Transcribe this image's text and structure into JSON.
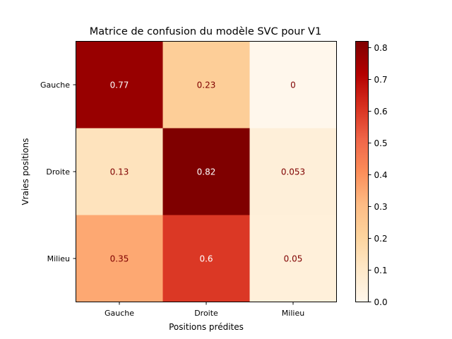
{
  "chart_data": {
    "type": "heatmap",
    "title": "Matrice de confusion du modèle SVC pour V1",
    "xlabel": "Positions prédites",
    "ylabel": "Vraies positions",
    "x_categories": [
      "Gauche",
      "Droite",
      "Milieu"
    ],
    "y_categories": [
      "Gauche",
      "Droite",
      "Milieu"
    ],
    "values": [
      [
        0.77,
        0.23,
        0
      ],
      [
        0.13,
        0.82,
        0.053
      ],
      [
        0.35,
        0.6,
        0.05
      ]
    ],
    "cell_labels": [
      [
        "0.77",
        "0.23",
        "0"
      ],
      [
        "0.13",
        "0.82",
        "0.053"
      ],
      [
        "0.35",
        "0.6",
        "0.05"
      ]
    ],
    "colormap": "OrRd",
    "color_range": [
      0,
      0.82
    ],
    "colorbar_ticks": [
      "0.0",
      "0.1",
      "0.2",
      "0.3",
      "0.4",
      "0.5",
      "0.6",
      "0.7",
      "0.8"
    ],
    "colorbar_tick_values": [
      0,
      0.1,
      0.2,
      0.3,
      0.4,
      0.5,
      0.6,
      0.7,
      0.8
    ],
    "text_colors": {
      "on_dark": "#ffffff",
      "on_light": "#7f0000"
    }
  }
}
